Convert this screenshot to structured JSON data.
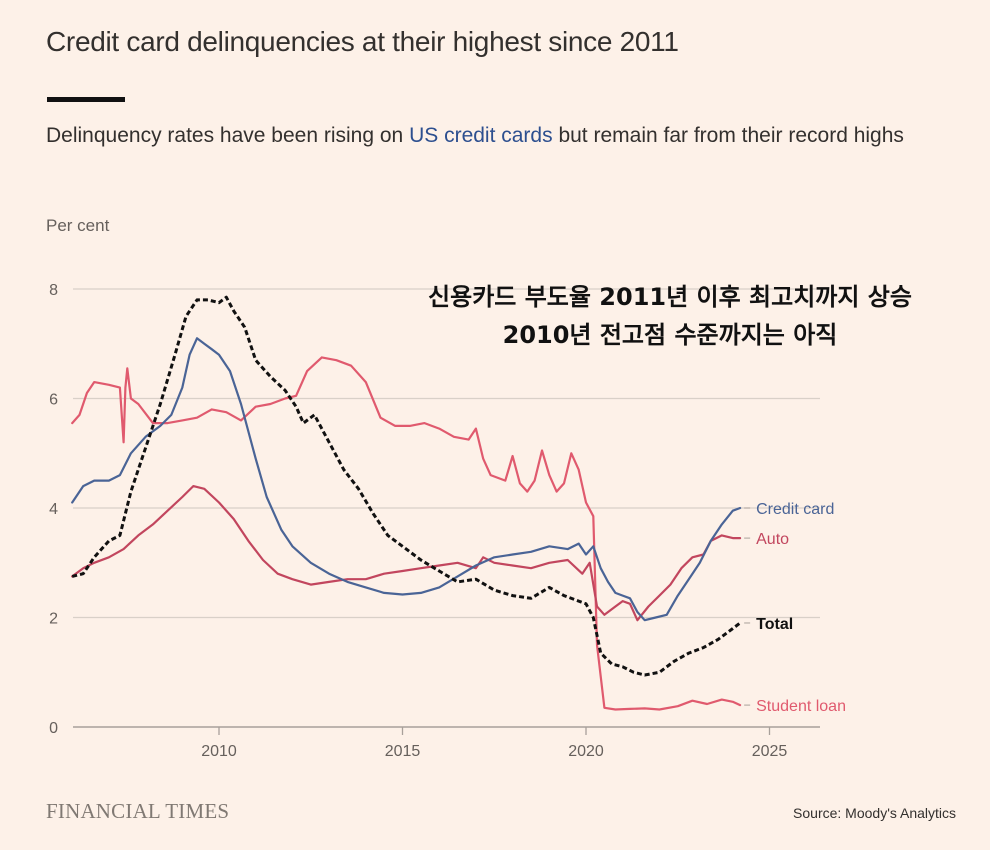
{
  "header": {
    "title": "Credit card delinquencies at their highest since 2011",
    "subtitle_pre": "Delinquency rates have been rising on ",
    "subtitle_highlight": "US credit cards",
    "subtitle_post": " but remain far from their record highs",
    "unit_label": "Per cent"
  },
  "annotation_korean": {
    "line1": "신용카드 부도율 2011년 이후 최고치까지 상승",
    "line2": "2010년 전고점 수준까지는 아직"
  },
  "footer": {
    "brand": "FINANCIAL TIMES",
    "source": "Source: Moody's Analytics"
  },
  "colors": {
    "background": "#fdf1e8",
    "credit_card": "#4a6496",
    "auto": "#c2465e",
    "student_loan": "#e05a6e",
    "total": "#111111",
    "grid": "#d9d0c8",
    "axis_text": "#66605c",
    "highlight_text": "#2d4f8f"
  },
  "chart_data": {
    "type": "line",
    "title": "Credit card delinquencies at their highest since 2011",
    "subtitle": "Delinquency rates have been rising on US credit cards but remain far from their record highs",
    "xlabel": "",
    "ylabel": "Per cent",
    "xlim": [
      2006.0,
      2026.4
    ],
    "ylim": [
      0,
      8
    ],
    "x_ticks": [
      2010,
      2015,
      2020,
      2025
    ],
    "y_ticks": [
      0,
      2,
      4,
      6,
      8
    ],
    "grid": true,
    "legend": "inline-right",
    "source": "Moody's Analytics",
    "series": [
      {
        "name": "Credit card",
        "key": "credit_card",
        "style": "solid",
        "x": [
          2006.0,
          2006.3,
          2006.6,
          2007.0,
          2007.3,
          2007.6,
          2008.0,
          2008.4,
          2008.7,
          2009.0,
          2009.2,
          2009.4,
          2009.6,
          2009.8,
          2010.0,
          2010.3,
          2010.6,
          2011.0,
          2011.3,
          2011.7,
          2012.0,
          2012.5,
          2013.0,
          2013.5,
          2014.0,
          2014.5,
          2015.0,
          2015.5,
          2016.0,
          2016.5,
          2017.0,
          2017.5,
          2018.0,
          2018.5,
          2019.0,
          2019.5,
          2019.8,
          2020.0,
          2020.2,
          2020.4,
          2020.6,
          2020.8,
          2021.0,
          2021.2,
          2021.4,
          2021.6,
          2021.9,
          2022.2,
          2022.5,
          2022.8,
          2023.1,
          2023.4,
          2023.7,
          2024.0,
          2024.2
        ],
        "y": [
          4.1,
          4.4,
          4.5,
          4.5,
          4.6,
          5.0,
          5.3,
          5.5,
          5.7,
          6.2,
          6.8,
          7.1,
          7.0,
          6.9,
          6.8,
          6.5,
          5.9,
          4.9,
          4.2,
          3.6,
          3.3,
          3.0,
          2.8,
          2.65,
          2.55,
          2.45,
          2.42,
          2.45,
          2.55,
          2.75,
          2.95,
          3.1,
          3.15,
          3.2,
          3.3,
          3.25,
          3.35,
          3.15,
          3.3,
          2.9,
          2.65,
          2.45,
          2.4,
          2.35,
          2.1,
          1.95,
          2.0,
          2.05,
          2.4,
          2.7,
          3.0,
          3.4,
          3.7,
          3.95,
          4.0
        ]
      },
      {
        "name": "Auto",
        "key": "auto",
        "style": "solid",
        "x": [
          2006.0,
          2006.3,
          2006.6,
          2007.0,
          2007.4,
          2007.8,
          2008.2,
          2008.6,
          2009.0,
          2009.3,
          2009.6,
          2010.0,
          2010.4,
          2010.8,
          2011.2,
          2011.6,
          2012.0,
          2012.5,
          2013.0,
          2013.5,
          2014.0,
          2014.5,
          2015.0,
          2015.5,
          2016.0,
          2016.5,
          2017.0,
          2017.2,
          2017.5,
          2018.0,
          2018.5,
          2019.0,
          2019.5,
          2019.9,
          2020.1,
          2020.3,
          2020.5,
          2020.8,
          2021.0,
          2021.2,
          2021.4,
          2021.7,
          2022.0,
          2022.3,
          2022.6,
          2022.9,
          2023.2,
          2023.4,
          2023.7,
          2024.0,
          2024.2
        ],
        "y": [
          2.75,
          2.9,
          3.0,
          3.1,
          3.25,
          3.5,
          3.7,
          3.95,
          4.2,
          4.4,
          4.35,
          4.1,
          3.8,
          3.4,
          3.05,
          2.8,
          2.7,
          2.6,
          2.65,
          2.7,
          2.7,
          2.8,
          2.85,
          2.9,
          2.95,
          3.0,
          2.9,
          3.1,
          3.0,
          2.95,
          2.9,
          3.0,
          3.05,
          2.8,
          3.0,
          2.2,
          2.05,
          2.2,
          2.3,
          2.25,
          1.95,
          2.2,
          2.4,
          2.6,
          2.9,
          3.1,
          3.15,
          3.4,
          3.5,
          3.45,
          3.45
        ]
      },
      {
        "name": "Student loan",
        "key": "student_loan",
        "style": "solid",
        "x": [
          2006.0,
          2006.2,
          2006.4,
          2006.6,
          2007.0,
          2007.3,
          2007.4,
          2007.45,
          2007.5,
          2007.6,
          2007.8,
          2008.2,
          2008.6,
          2009.0,
          2009.4,
          2009.8,
          2010.2,
          2010.6,
          2011.0,
          2011.4,
          2011.8,
          2012.1,
          2012.4,
          2012.8,
          2013.2,
          2013.6,
          2014.0,
          2014.4,
          2014.8,
          2015.2,
          2015.6,
          2016.0,
          2016.4,
          2016.8,
          2017.0,
          2017.2,
          2017.4,
          2017.8,
          2018.0,
          2018.2,
          2018.4,
          2018.6,
          2018.8,
          2019.0,
          2019.2,
          2019.4,
          2019.6,
          2019.8,
          2020.0,
          2020.2,
          2020.3,
          2020.5,
          2020.8,
          2021.2,
          2021.6,
          2022.0,
          2022.5,
          2022.9,
          2023.3,
          2023.7,
          2024.0,
          2024.2
        ],
        "y": [
          5.55,
          5.7,
          6.1,
          6.3,
          6.25,
          6.2,
          5.2,
          6.2,
          6.55,
          6.0,
          5.9,
          5.55,
          5.55,
          5.6,
          5.65,
          5.8,
          5.75,
          5.6,
          5.85,
          5.9,
          6.0,
          6.05,
          6.5,
          6.75,
          6.7,
          6.6,
          6.3,
          5.65,
          5.5,
          5.5,
          5.55,
          5.45,
          5.3,
          5.25,
          5.45,
          4.9,
          4.6,
          4.5,
          4.95,
          4.45,
          4.3,
          4.5,
          5.05,
          4.6,
          4.3,
          4.45,
          5.0,
          4.7,
          4.1,
          3.85,
          1.5,
          0.35,
          0.32,
          0.33,
          0.34,
          0.32,
          0.38,
          0.48,
          0.42,
          0.5,
          0.46,
          0.4
        ]
      },
      {
        "name": "Total",
        "key": "total",
        "style": "dashed",
        "x": [
          2006.0,
          2006.3,
          2006.6,
          2007.0,
          2007.3,
          2007.6,
          2008.0,
          2008.4,
          2008.8,
          2009.1,
          2009.4,
          2009.7,
          2010.0,
          2010.2,
          2010.4,
          2010.7,
          2011.0,
          2011.4,
          2011.8,
          2012.1,
          2012.3,
          2012.6,
          2013.0,
          2013.4,
          2013.8,
          2014.2,
          2014.6,
          2015.0,
          2015.5,
          2016.0,
          2016.5,
          2017.0,
          2017.5,
          2018.0,
          2018.5,
          2019.0,
          2019.4,
          2019.8,
          2020.0,
          2020.2,
          2020.4,
          2020.7,
          2021.0,
          2021.3,
          2021.6,
          2022.0,
          2022.4,
          2022.8,
          2023.2,
          2023.6,
          2024.0,
          2024.2
        ],
        "y": [
          2.75,
          2.8,
          3.1,
          3.4,
          3.5,
          4.3,
          5.1,
          5.9,
          6.8,
          7.5,
          7.8,
          7.8,
          7.75,
          7.85,
          7.6,
          7.3,
          6.7,
          6.4,
          6.15,
          5.85,
          5.55,
          5.7,
          5.2,
          4.7,
          4.35,
          3.9,
          3.5,
          3.3,
          3.05,
          2.85,
          2.65,
          2.7,
          2.5,
          2.4,
          2.35,
          2.55,
          2.4,
          2.3,
          2.25,
          2.0,
          1.35,
          1.15,
          1.1,
          1.0,
          0.95,
          1.0,
          1.2,
          1.35,
          1.45,
          1.6,
          1.8,
          1.9
        ]
      }
    ]
  }
}
